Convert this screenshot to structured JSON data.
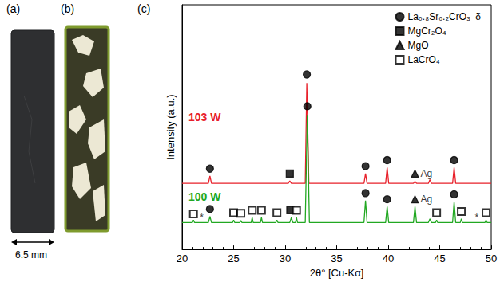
{
  "panels": [
    {
      "label": "(a)",
      "scale_bar": "6.5 mm"
    },
    {
      "label": "(b)"
    },
    {
      "label": "(c)"
    }
  ],
  "chart_data": {
    "type": "line",
    "x_label": "2θ° [Cu-Kα]",
    "y_label": "Intensity (a.u.)",
    "xlim": [
      20,
      50
    ],
    "xticks": [
      20,
      25,
      30,
      35,
      40,
      45,
      50
    ],
    "ylim": [
      0,
      100
    ],
    "tick_labels": "x",
    "legend": "upper right",
    "series": [
      {
        "name": "103 W",
        "type": "line",
        "color": "#e8202a",
        "x": [
          20,
          22.55,
          22.7,
          22.85,
          30.3,
          30.45,
          30.6,
          31.95,
          32.1,
          32.3,
          37.65,
          37.8,
          37.95,
          39.75,
          39.9,
          40.05,
          42.45,
          42.6,
          42.75,
          43.9,
          44.05,
          44.2,
          46.25,
          46.4,
          46.55,
          50
        ],
        "values": [
          27,
          27,
          30,
          27,
          27,
          28,
          27,
          27,
          68,
          27,
          27,
          31,
          27,
          27,
          33.5,
          27,
          27,
          27.8,
          27,
          27,
          28.5,
          27,
          27,
          33.5,
          27,
          27
        ]
      },
      {
        "name": "100 W",
        "type": "line",
        "color": "#22a822",
        "x": [
          20,
          21.0,
          21.1,
          21.2,
          22.55,
          22.7,
          22.85,
          24.9,
          25.0,
          25.1,
          25.6,
          25.7,
          25.8,
          26.7,
          26.8,
          26.9,
          27.6,
          27.7,
          27.8,
          29.1,
          29.2,
          29.3,
          30.45,
          30.6,
          30.75,
          31.0,
          31.1,
          31.2,
          31.95,
          32.15,
          32.35,
          37.65,
          37.8,
          37.95,
          39.75,
          39.9,
          40.05,
          42.45,
          42.6,
          42.75,
          43.9,
          44.05,
          44.2,
          44.6,
          44.7,
          44.8,
          46.25,
          46.4,
          46.55,
          47.0,
          47.1,
          47.2,
          49.4,
          49.5,
          49.6,
          50
        ],
        "values": [
          11,
          11,
          12,
          11,
          11,
          13.5,
          11,
          11,
          12,
          11,
          11,
          11.8,
          11,
          11,
          13,
          11,
          11,
          13,
          11,
          11,
          12,
          11,
          11,
          13,
          11,
          11,
          13,
          11,
          11,
          55,
          11,
          11,
          20,
          11,
          11,
          17.5,
          11,
          11,
          17.5,
          11,
          11,
          12.5,
          11,
          11,
          12,
          11,
          11,
          19.5,
          11,
          11,
          12.5,
          11,
          11,
          12,
          11,
          11
        ]
      },
      {
        "name": "La₀.₈Sr₀.₂CrO₃₋δ",
        "type": "scatter",
        "marker": "circle",
        "color": "#000000",
        "x": [
          22.7,
          32.1,
          37.8,
          39.9,
          46.4,
          22.7,
          32.15,
          37.8,
          39.9,
          46.4
        ],
        "values": [
          33,
          71.5,
          34,
          36.5,
          36.5,
          16.5,
          58.5,
          23,
          20.5,
          22.5
        ]
      },
      {
        "name": "MgCr₂O₄",
        "type": "scatter",
        "marker": "square",
        "color": "#000000",
        "x": [
          30.45,
          30.5
        ],
        "values": [
          31,
          16
        ]
      },
      {
        "name": "MgO",
        "type": "scatter",
        "marker": "triangle",
        "color": "#000000",
        "x": [
          42.6,
          42.6
        ],
        "values": [
          31,
          20.5
        ]
      },
      {
        "name": "LaCrO₄",
        "type": "scatter",
        "marker": "open square",
        "color": "#000000",
        "x": [
          21.1,
          25.0,
          25.7,
          26.8,
          27.7,
          29.2,
          31.1,
          44.7,
          47.1,
          49.5
        ],
        "values": [
          14.5,
          15,
          14.8,
          16,
          16,
          15,
          16,
          15,
          15.5,
          15
        ]
      }
    ],
    "annotations": [
      {
        "text": "Ag",
        "x": 43.7,
        "y": 31
      },
      {
        "text": "Ag",
        "x": 43.7,
        "y": 20.5
      },
      {
        "text": "*",
        "x": 21.9,
        "y": 13
      },
      {
        "text": "*",
        "x": 48.6,
        "y": 13
      }
    ]
  }
}
